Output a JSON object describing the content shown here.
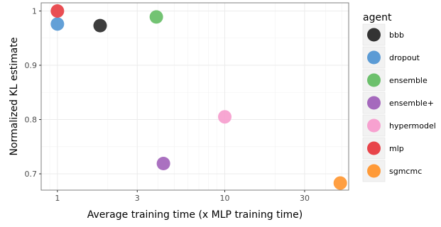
{
  "chart_data": {
    "type": "scatter",
    "xlabel": "Average training time (x MLP training time)",
    "ylabel": "Normalized KL estimate",
    "x_scale": "log",
    "xlim": [
      0.8,
      55
    ],
    "ylim": [
      0.67,
      1.015
    ],
    "x_ticks": [
      1,
      3,
      10,
      30
    ],
    "x_tick_labels": [
      "1",
      "3",
      "10",
      "30"
    ],
    "y_ticks": [
      0.7,
      0.8,
      0.9,
      1.0
    ],
    "y_tick_labels": [
      "0.7",
      "0.8",
      "0.9",
      "1"
    ],
    "grid": true,
    "legend_title": "agent",
    "legend_position": "right",
    "series": [
      {
        "name": "bbb",
        "color": "#333333",
        "x": 1.8,
        "y": 0.973
      },
      {
        "name": "dropout",
        "color": "#5b9bd5",
        "x": 1.0,
        "y": 0.976
      },
      {
        "name": "ensemble",
        "color": "#6cc06c",
        "x": 3.9,
        "y": 0.989
      },
      {
        "name": "ensemble+",
        "color": "#a569bd",
        "x": 4.3,
        "y": 0.719
      },
      {
        "name": "hypermodel",
        "color": "#f7a1d0",
        "x": 10.0,
        "y": 0.805
      },
      {
        "name": "mlp",
        "color": "#e8444a",
        "x": 1.0,
        "y": 1.0
      },
      {
        "name": "sgmcmc",
        "color": "#ff9a38",
        "x": 49.0,
        "y": 0.683
      }
    ]
  }
}
